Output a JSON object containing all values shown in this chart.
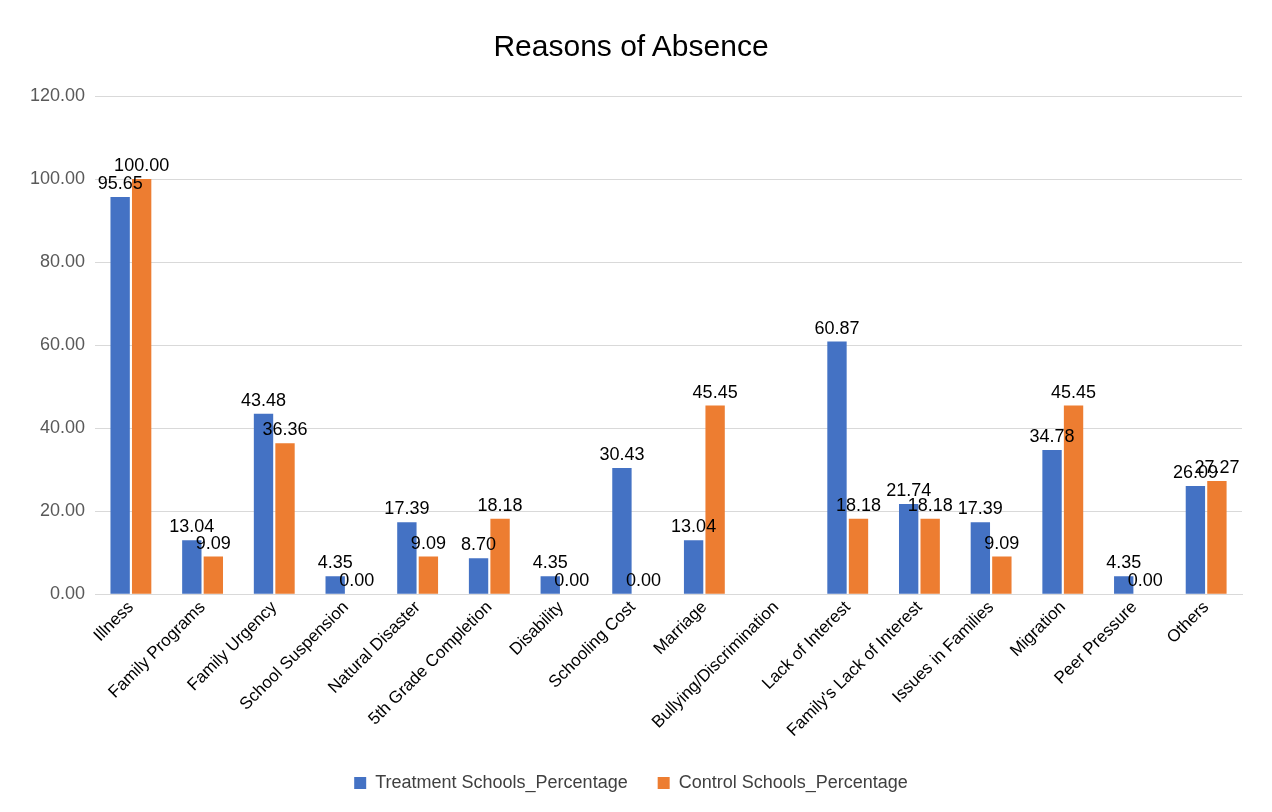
{
  "chart_data": {
    "type": "bar",
    "title": "Reasons of Absence",
    "categories": [
      "Illness",
      "Family Programs",
      "Family Urgency",
      "School Suspension",
      "Natural Disaster",
      "5th Grade Completion",
      "Disability",
      "Schooling Cost",
      "Marriage",
      "Bullying/Discrimination",
      "Lack of Interest",
      "Family's Lack of Interest",
      "Issues in Families",
      "Migration",
      "Peer Pressure",
      "Others"
    ],
    "series": [
      {
        "name": "Treatment Schools_Percentage",
        "color": "#4472c4",
        "values": [
          95.65,
          13.04,
          43.48,
          4.35,
          17.39,
          8.7,
          4.35,
          30.43,
          13.04,
          null,
          60.87,
          21.74,
          17.39,
          34.78,
          4.35,
          26.09
        ],
        "value_labels": [
          "95.65",
          "13.04",
          "43.48",
          "4.35",
          "17.39",
          "8.70",
          "4.35",
          "30.43",
          "13.04",
          null,
          "60.87",
          "21.74",
          "17.39",
          "34.78",
          "4.35",
          "26.09"
        ]
      },
      {
        "name": "Control Schools_Percentage",
        "color": "#ed7d31",
        "values": [
          100,
          9.09,
          36.36,
          0,
          9.09,
          18.18,
          0,
          0,
          45.45,
          null,
          18.18,
          18.18,
          9.09,
          45.45,
          0,
          27.27
        ],
        "value_labels": [
          "100.00",
          "9.09",
          "36.36",
          "0.00",
          "9.09",
          "18.18",
          "0.00",
          "0.00",
          "45.45",
          null,
          "18.18",
          "18.18",
          "9.09",
          "45.45",
          "0.00",
          "27.27"
        ]
      }
    ],
    "ylim": [
      0,
      120
    ],
    "yticks": [
      {
        "value": 0,
        "label": "0.00"
      },
      {
        "value": 20,
        "label": "20.00"
      },
      {
        "value": 40,
        "label": "40.00"
      },
      {
        "value": 60,
        "label": "60.00"
      },
      {
        "value": 80,
        "label": "80.00"
      },
      {
        "value": 100,
        "label": "100.00"
      },
      {
        "value": 120,
        "label": "120.00"
      }
    ],
    "grid": "y",
    "legend": "bottom"
  }
}
